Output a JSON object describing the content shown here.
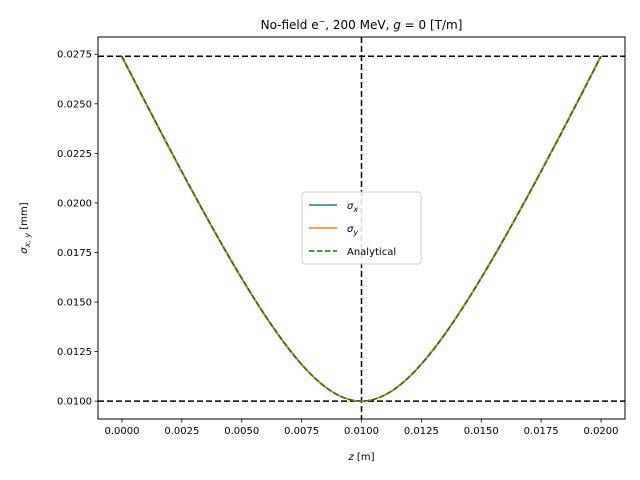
{
  "chart_data": {
    "type": "line",
    "title_prefix": "No-field e",
    "title_sup": "−",
    "title_mid": ", 200 MeV, ",
    "title_var": "g",
    "title_suffix": " = 0 [T/m]",
    "xlabel_var": "z",
    "xlabel_unit": " [m]",
    "ylabel_var": "σ",
    "ylabel_sub": "x, y",
    "ylabel_unit": " [mm]",
    "xlim": [
      -0.001,
      0.021
    ],
    "ylim": [
      0.0091,
      0.02837
    ],
    "xticks": [
      0.0,
      0.0025,
      0.005,
      0.0075,
      0.01,
      0.0125,
      0.015,
      0.0175,
      0.02
    ],
    "xtick_labels": [
      "0.0000",
      "0.0025",
      "0.0050",
      "0.0075",
      "0.0100",
      "0.0125",
      "0.0150",
      "0.0175",
      "0.0200"
    ],
    "yticks": [
      0.01,
      0.0125,
      0.015,
      0.0175,
      0.02,
      0.0225,
      0.025,
      0.0275
    ],
    "ytick_labels": [
      "0.0100",
      "0.0125",
      "0.0150",
      "0.0175",
      "0.0200",
      "0.0225",
      "0.0250",
      "0.0275"
    ],
    "model": {
      "sigma0": 0.01,
      "z_waist": 0.01,
      "z_end": 0.02,
      "sigma_end": 0.0274,
      "samples": 81
    },
    "series": [
      {
        "name": "σ",
        "sub": "x",
        "color": "#1f77b4",
        "dash": "solid"
      },
      {
        "name": "σ",
        "sub": "y",
        "color": "#ff7f0e",
        "dash": "solid"
      },
      {
        "name": "Analytical",
        "sub": "",
        "color": "#008000",
        "dash": "dashed"
      }
    ],
    "reference_lines": [
      {
        "orientation": "horizontal",
        "value": 0.0274,
        "color": "#000000"
      },
      {
        "orientation": "horizontal",
        "value": 0.01,
        "color": "#000000"
      },
      {
        "orientation": "vertical",
        "value": 0.01,
        "color": "#000000"
      }
    ],
    "legend_position": "center-right",
    "grid": false
  }
}
